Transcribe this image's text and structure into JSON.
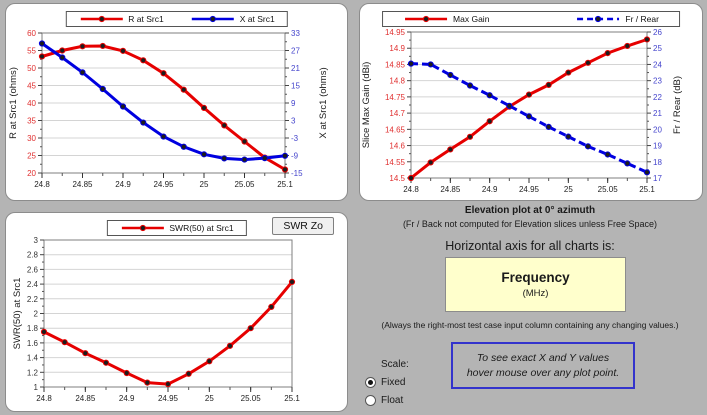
{
  "colors": {
    "page_bg": "#b4b4b4",
    "panel_bg": "#ffffff",
    "red_series": "#e60000",
    "blue_series": "#0000e0",
    "red_tick_labels": "#e03030",
    "blue_tick_labels": "#4444cc",
    "yellow_box_bg": "#ffffcc",
    "hover_box_border": "#3333cc"
  },
  "buttons": {
    "swr_zo": "SWR Zo"
  },
  "info": {
    "elevation_title": "Elevation plot at 0° azimuth",
    "elevation_note": "(Fr / Back not computed for Elevation slices unless Free Space)",
    "axis_heading": "Horizontal axis for all charts is:",
    "axis_box_title": "Frequency",
    "axis_box_sub": "(MHz)",
    "axis_footnote": "(Always the right-most test case input column containing any changing values.)",
    "hover_note_line1": "To see exact X and Y values",
    "hover_note_line2": "hover mouse over any plot point.",
    "scale_label": "Scale:",
    "scale_options": [
      {
        "label": "Fixed",
        "selected": true
      },
      {
        "label": "Float",
        "selected": false
      }
    ]
  },
  "chart_data": [
    {
      "id": "r-x-chart",
      "type": "line",
      "grid": "horizontal-only",
      "legend_position": "top",
      "x": [
        24.8,
        24.825,
        24.85,
        24.875,
        24.9,
        24.925,
        24.95,
        24.975,
        25.0,
        25.025,
        25.05,
        25.075,
        25.1
      ],
      "xticks": {
        "values": [
          24.8,
          24.85,
          24.9,
          24.95,
          25.0,
          25.05,
          25.1
        ],
        "labels": [
          "24.8",
          "24.85",
          "24.9",
          "24.95",
          "25",
          "25.05",
          "25.1"
        ]
      },
      "left_axis": {
        "title": "R at Src1 (ohms)",
        "min": 20,
        "max": 60,
        "tick_values": [
          20,
          25,
          30,
          35,
          40,
          45,
          50,
          55,
          60
        ],
        "tick_labels": [
          "20",
          "25",
          "30",
          "35",
          "40",
          "45",
          "50",
          "55",
          "60"
        ],
        "tick_color": "#e03030"
      },
      "right_axis": {
        "title": "X at Src1 (ohms)",
        "min": -15,
        "max": 33,
        "tick_values": [
          -15,
          -9,
          -3,
          3,
          9,
          15,
          21,
          27,
          33
        ],
        "tick_labels": [
          "-15",
          "-9",
          "-3",
          "3",
          "9",
          "15",
          "21",
          "27",
          "33"
        ],
        "tick_color": "#4444cc"
      },
      "series": [
        {
          "name": "R at Src1",
          "axis": "left",
          "color": "#e60000",
          "dash": false,
          "values": [
            53.3,
            55.0,
            56.2,
            56.3,
            54.9,
            52.2,
            48.5,
            43.8,
            38.6,
            33.6,
            29.0,
            24.4,
            21.0
          ]
        },
        {
          "name": "X at Src1",
          "axis": "right",
          "color": "#0000e0",
          "dash": false,
          "values": [
            29.4,
            24.6,
            19.5,
            13.8,
            7.8,
            2.3,
            -2.5,
            -6.0,
            -8.6,
            -10.0,
            -10.4,
            -9.9,
            -9.1
          ]
        }
      ]
    },
    {
      "id": "gain-fr-chart",
      "type": "line",
      "grid": "horizontal-only",
      "legend_position": "top",
      "x": [
        24.8,
        24.825,
        24.85,
        24.875,
        24.9,
        24.925,
        24.95,
        24.975,
        25.0,
        25.025,
        25.05,
        25.075,
        25.1
      ],
      "xticks": {
        "values": [
          24.8,
          24.85,
          24.9,
          24.95,
          25.0,
          25.05,
          25.1
        ],
        "labels": [
          "24.8",
          "24.85",
          "24.9",
          "24.95",
          "25",
          "25.05",
          "25.1"
        ]
      },
      "left_axis": {
        "title": "Slice Max Gain (dBi)",
        "min": 14.5,
        "max": 14.95,
        "tick_values": [
          14.5,
          14.55,
          14.6,
          14.65,
          14.7,
          14.75,
          14.8,
          14.85,
          14.9,
          14.95
        ],
        "tick_labels": [
          "14.5",
          "14.55",
          "14.6",
          "14.65",
          "14.7",
          "14.75",
          "14.8",
          "14.85",
          "14.9",
          "14.95"
        ],
        "tick_color": "#e03030"
      },
      "right_axis": {
        "title": "Fr / Rear (dB)",
        "min": 17,
        "max": 26,
        "tick_values": [
          17,
          18,
          19,
          20,
          21,
          22,
          23,
          24,
          25,
          26
        ],
        "tick_labels": [
          "17",
          "18",
          "19",
          "20",
          "21",
          "22",
          "23",
          "24",
          "25",
          "26"
        ],
        "tick_color": "#4444cc"
      },
      "series": [
        {
          "name": "Max Gain",
          "axis": "left",
          "color": "#e60000",
          "dash": false,
          "values": [
            14.5,
            14.548,
            14.588,
            14.627,
            14.675,
            14.72,
            14.757,
            14.787,
            14.825,
            14.855,
            14.885,
            14.907,
            14.927
          ]
        },
        {
          "name": "Fr / Rear",
          "axis": "right",
          "color": "#0000e0",
          "dash": true,
          "values": [
            24.05,
            24.0,
            23.35,
            22.7,
            22.1,
            21.45,
            20.8,
            20.15,
            19.55,
            18.95,
            18.45,
            17.9,
            17.35
          ]
        }
      ]
    },
    {
      "id": "swr-chart",
      "type": "line",
      "grid": "horizontal-only",
      "legend_position": "top",
      "x": [
        24.8,
        24.825,
        24.85,
        24.875,
        24.9,
        24.925,
        24.95,
        24.975,
        25.0,
        25.025,
        25.05,
        25.075,
        25.1
      ],
      "xticks": {
        "values": [
          24.8,
          24.85,
          24.9,
          24.95,
          25.0,
          25.05,
          25.1
        ],
        "labels": [
          "24.8",
          "24.85",
          "24.9",
          "24.95",
          "25",
          "25.05",
          "25.1"
        ]
      },
      "left_axis": {
        "title": "SWR(50) at Src1",
        "min": 1,
        "max": 3,
        "tick_values": [
          1,
          1.2,
          1.4,
          1.6,
          1.8,
          2,
          2.2,
          2.4,
          2.6,
          2.8,
          3
        ],
        "tick_labels": [
          "1",
          "1.2",
          "1.4",
          "1.6",
          "1.8",
          "2",
          "2.2",
          "2.4",
          "2.6",
          "2.8",
          "3"
        ],
        "tick_color": "#333333"
      },
      "series": [
        {
          "name": "SWR(50) at Src1",
          "axis": "left",
          "color": "#e60000",
          "dash": false,
          "values": [
            1.75,
            1.61,
            1.46,
            1.33,
            1.19,
            1.06,
            1.04,
            1.18,
            1.35,
            1.56,
            1.8,
            2.09,
            2.43
          ]
        }
      ]
    }
  ]
}
